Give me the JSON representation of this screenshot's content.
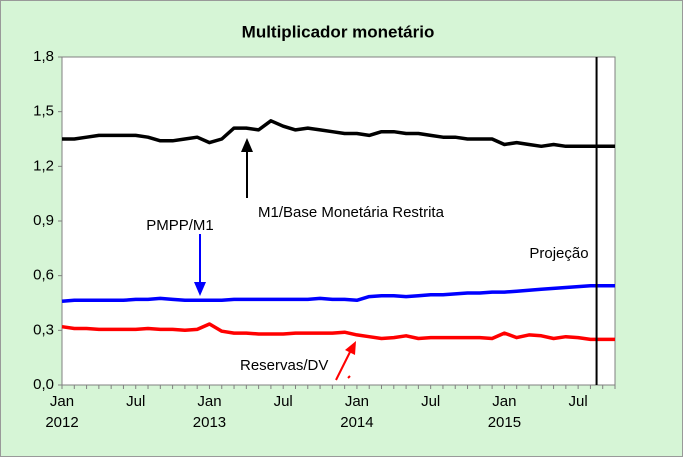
{
  "chart_data": {
    "type": "line",
    "title": "Multiplicador monetário",
    "categories": [
      "Jan",
      null,
      null,
      null,
      null,
      null,
      "Jul",
      null,
      null,
      null,
      null,
      null,
      "Jan",
      null,
      null,
      null,
      null,
      null,
      "Jul",
      null,
      null,
      null,
      null,
      null,
      "Jan",
      null,
      null,
      null,
      null,
      null,
      "Jul",
      null,
      null,
      null,
      null,
      null,
      "Jan",
      null,
      null,
      null,
      null,
      null,
      "Jul",
      null,
      null,
      null
    ],
    "year_labels": [
      "2012",
      null,
      null,
      null,
      null,
      null,
      null,
      null,
      null,
      null,
      null,
      null,
      "2013",
      null,
      null,
      null,
      null,
      null,
      null,
      null,
      null,
      null,
      null,
      null,
      "2014",
      null,
      null,
      null,
      null,
      null,
      null,
      null,
      null,
      null,
      null,
      null,
      "2015",
      null,
      null,
      null,
      null,
      null,
      null,
      null,
      null,
      null
    ],
    "series": [
      {
        "name": "M1/Base Monetária Restrita",
        "color": "#000000",
        "values": [
          1.35,
          1.35,
          1.36,
          1.37,
          1.37,
          1.37,
          1.37,
          1.36,
          1.34,
          1.34,
          1.35,
          1.36,
          1.33,
          1.35,
          1.41,
          1.41,
          1.4,
          1.45,
          1.42,
          1.4,
          1.41,
          1.4,
          1.39,
          1.38,
          1.38,
          1.37,
          1.39,
          1.39,
          1.38,
          1.38,
          1.37,
          1.36,
          1.36,
          1.35,
          1.35,
          1.35,
          1.32,
          1.33,
          1.32,
          1.31,
          1.32,
          1.31,
          1.31,
          1.31,
          1.31,
          1.31
        ]
      },
      {
        "name": "PMPP/M1",
        "color": "#0000ff",
        "values": [
          0.46,
          0.465,
          0.465,
          0.465,
          0.465,
          0.465,
          0.47,
          0.47,
          0.475,
          0.47,
          0.465,
          0.465,
          0.465,
          0.465,
          0.47,
          0.47,
          0.47,
          0.47,
          0.47,
          0.47,
          0.47,
          0.475,
          0.47,
          0.47,
          0.465,
          0.485,
          0.49,
          0.49,
          0.485,
          0.49,
          0.495,
          0.495,
          0.5,
          0.505,
          0.505,
          0.51,
          0.51,
          0.515,
          0.52,
          0.525,
          0.53,
          0.535,
          0.54,
          0.545,
          0.545,
          0.545
        ]
      },
      {
        "name": "Reservas/DV",
        "color": "#ff0000",
        "values": [
          0.32,
          0.31,
          0.31,
          0.305,
          0.305,
          0.305,
          0.305,
          0.31,
          0.305,
          0.305,
          0.3,
          0.305,
          0.335,
          0.295,
          0.285,
          0.285,
          0.28,
          0.28,
          0.28,
          0.285,
          0.285,
          0.285,
          0.285,
          0.29,
          0.275,
          0.265,
          0.255,
          0.26,
          0.27,
          0.255,
          0.26,
          0.26,
          0.26,
          0.26,
          0.26,
          0.255,
          0.285,
          0.26,
          0.275,
          0.27,
          0.255,
          0.265,
          0.26,
          0.25,
          0.25,
          0.25
        ]
      }
    ],
    "ylim": [
      0,
      1.8
    ],
    "yticks": [
      {
        "value": 0,
        "label": "0,0"
      },
      {
        "value": 0.3,
        "label": "0,3"
      },
      {
        "value": 0.6,
        "label": "0,6"
      },
      {
        "value": 0.9,
        "label": "0,9"
      },
      {
        "value": 1.2,
        "label": "1,2"
      },
      {
        "value": 1.5,
        "label": "1,5"
      },
      {
        "value": 1.8,
        "label": "1,8"
      }
    ],
    "projection": {
      "label": "Projeção",
      "x": 43.5
    },
    "grid": false
  }
}
